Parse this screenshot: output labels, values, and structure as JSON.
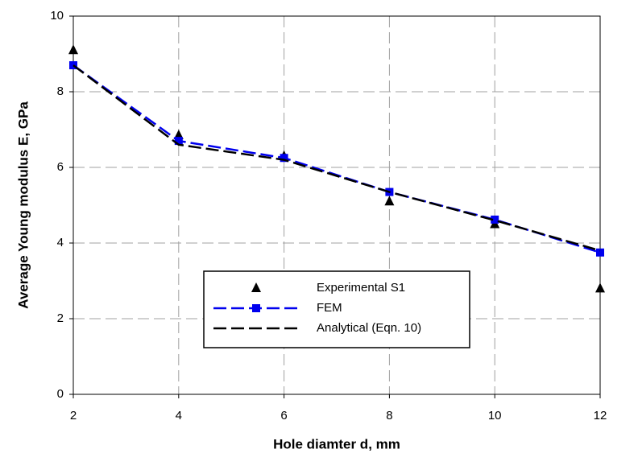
{
  "chart_data": {
    "type": "line",
    "x_label": "Hole diamter d, mm",
    "y_label": "Average Young modulus E, GPa",
    "xlim": [
      2,
      12
    ],
    "xticks": [
      2,
      4,
      6,
      8,
      10,
      12
    ],
    "ylim": [
      0,
      10
    ],
    "yticks": [
      0,
      2,
      4,
      6,
      8,
      10
    ],
    "grid": true,
    "series": [
      {
        "name": "Experimental S1",
        "color": "#000000",
        "marker": "triangle",
        "line": "none",
        "x": [
          2,
          4,
          6,
          8,
          10,
          12
        ],
        "values": [
          9.1,
          6.85,
          6.3,
          5.1,
          4.5,
          2.8
        ]
      },
      {
        "name": "FEM",
        "color": "#0000ee",
        "marker": "square",
        "line": "dashed",
        "x": [
          2,
          4,
          6,
          8,
          10,
          12
        ],
        "values": [
          8.7,
          6.7,
          6.25,
          5.35,
          4.62,
          3.75
        ]
      },
      {
        "name": "Analytical (Eqn. 10)",
        "color": "#000000",
        "marker": "none",
        "line": "dashed",
        "x": [
          2,
          4,
          6,
          8,
          10,
          12
        ],
        "values": [
          8.7,
          6.6,
          6.2,
          5.35,
          4.6,
          3.8
        ]
      }
    ]
  }
}
